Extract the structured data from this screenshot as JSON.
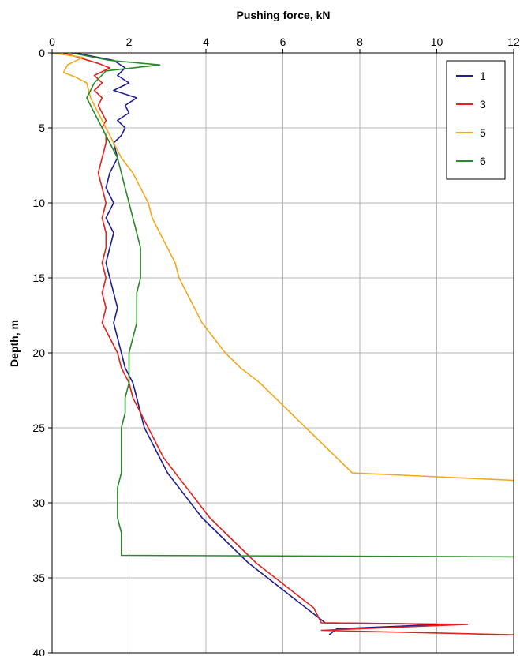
{
  "chart_data": {
    "type": "line",
    "title": "",
    "xlabel": "Pushing force, kN",
    "ylabel": "Depth, m",
    "xlim": [
      0,
      12
    ],
    "ylim": [
      0,
      40
    ],
    "y_inverted": true,
    "x_axis_position": "top",
    "grid": true,
    "legend_position": "top-right",
    "x_ticks": [
      "0",
      "2",
      "4",
      "6",
      "8",
      "10",
      "12"
    ],
    "y_ticks": [
      "0",
      "5",
      "10",
      "15",
      "20",
      "25",
      "30",
      "35",
      "40"
    ],
    "series": [
      {
        "name": "1",
        "color": "#1f1f8f",
        "points": [
          [
            0.6,
            0.0
          ],
          [
            1.6,
            0.5
          ],
          [
            1.9,
            1.0
          ],
          [
            1.7,
            1.5
          ],
          [
            2.0,
            2.0
          ],
          [
            1.6,
            2.5
          ],
          [
            2.2,
            3.0
          ],
          [
            1.9,
            3.5
          ],
          [
            2.0,
            4.0
          ],
          [
            1.7,
            4.5
          ],
          [
            1.9,
            5.0
          ],
          [
            1.8,
            5.5
          ],
          [
            1.6,
            6.0
          ],
          [
            1.7,
            7.0
          ],
          [
            1.5,
            8.0
          ],
          [
            1.4,
            9.0
          ],
          [
            1.6,
            10.0
          ],
          [
            1.4,
            11.0
          ],
          [
            1.6,
            12.0
          ],
          [
            1.5,
            13.0
          ],
          [
            1.4,
            14.0
          ],
          [
            1.5,
            15.0
          ],
          [
            1.6,
            16.0
          ],
          [
            1.7,
            17.0
          ],
          [
            1.6,
            18.0
          ],
          [
            1.7,
            19.0
          ],
          [
            1.8,
            20.0
          ],
          [
            1.9,
            21.0
          ],
          [
            2.1,
            22.0
          ],
          [
            2.2,
            23.0
          ],
          [
            2.3,
            24.0
          ],
          [
            2.4,
            25.0
          ],
          [
            2.6,
            26.0
          ],
          [
            2.8,
            27.0
          ],
          [
            3.0,
            28.0
          ],
          [
            3.3,
            29.0
          ],
          [
            3.6,
            30.0
          ],
          [
            3.9,
            31.0
          ],
          [
            4.3,
            32.0
          ],
          [
            4.7,
            33.0
          ],
          [
            5.1,
            34.0
          ],
          [
            5.6,
            35.0
          ],
          [
            6.1,
            36.0
          ],
          [
            6.6,
            37.0
          ],
          [
            7.1,
            38.0
          ],
          [
            10.2,
            38.1
          ],
          [
            7.4,
            38.4
          ],
          [
            7.2,
            38.8
          ]
        ]
      },
      {
        "name": "3",
        "color": "#e0231e",
        "points": [
          [
            0.3,
            0.0
          ],
          [
            1.2,
            0.7
          ],
          [
            1.5,
            1.0
          ],
          [
            1.1,
            1.5
          ],
          [
            1.3,
            2.0
          ],
          [
            1.1,
            2.5
          ],
          [
            1.3,
            3.0
          ],
          [
            1.2,
            3.5
          ],
          [
            1.3,
            4.0
          ],
          [
            1.4,
            4.5
          ],
          [
            1.3,
            5.0
          ],
          [
            1.4,
            5.5
          ],
          [
            1.4,
            6.0
          ],
          [
            1.3,
            7.0
          ],
          [
            1.2,
            8.0
          ],
          [
            1.3,
            9.0
          ],
          [
            1.4,
            10.0
          ],
          [
            1.3,
            11.0
          ],
          [
            1.4,
            12.0
          ],
          [
            1.4,
            13.0
          ],
          [
            1.3,
            14.0
          ],
          [
            1.4,
            15.0
          ],
          [
            1.3,
            16.0
          ],
          [
            1.4,
            17.0
          ],
          [
            1.3,
            18.0
          ],
          [
            1.5,
            19.0
          ],
          [
            1.7,
            20.0
          ],
          [
            1.8,
            21.0
          ],
          [
            2.0,
            22.0
          ],
          [
            2.1,
            23.0
          ],
          [
            2.3,
            24.0
          ],
          [
            2.5,
            25.0
          ],
          [
            2.7,
            26.0
          ],
          [
            2.9,
            27.0
          ],
          [
            3.2,
            28.0
          ],
          [
            3.5,
            29.0
          ],
          [
            3.8,
            30.0
          ],
          [
            4.1,
            31.0
          ],
          [
            4.5,
            32.0
          ],
          [
            4.9,
            33.0
          ],
          [
            5.3,
            34.0
          ],
          [
            5.8,
            35.0
          ],
          [
            6.3,
            36.0
          ],
          [
            6.8,
            37.0
          ],
          [
            7.0,
            38.0
          ],
          [
            10.8,
            38.1
          ],
          [
            7.0,
            38.5
          ],
          [
            12.0,
            38.8
          ]
        ]
      },
      {
        "name": "5",
        "color": "#f3a81c",
        "points": [
          [
            0.0,
            0.0
          ],
          [
            0.8,
            0.3
          ],
          [
            0.4,
            0.8
          ],
          [
            0.3,
            1.3
          ],
          [
            0.6,
            1.6
          ],
          [
            0.9,
            2.0
          ],
          [
            1.0,
            3.0
          ],
          [
            1.2,
            4.0
          ],
          [
            1.4,
            5.0
          ],
          [
            1.6,
            6.0
          ],
          [
            1.8,
            7.0
          ],
          [
            2.1,
            8.0
          ],
          [
            2.3,
            9.0
          ],
          [
            2.5,
            10.0
          ],
          [
            2.6,
            11.0
          ],
          [
            2.8,
            12.0
          ],
          [
            3.0,
            13.0
          ],
          [
            3.2,
            14.0
          ],
          [
            3.3,
            15.0
          ],
          [
            3.5,
            16.0
          ],
          [
            3.7,
            17.0
          ],
          [
            3.9,
            18.0
          ],
          [
            4.2,
            19.0
          ],
          [
            4.5,
            20.0
          ],
          [
            4.9,
            21.0
          ],
          [
            5.4,
            22.0
          ],
          [
            5.8,
            23.0
          ],
          [
            6.2,
            24.0
          ],
          [
            6.6,
            25.0
          ],
          [
            7.0,
            26.0
          ],
          [
            7.4,
            27.0
          ],
          [
            7.8,
            28.0
          ],
          [
            12.0,
            28.5
          ]
        ]
      },
      {
        "name": "6",
        "color": "#2a8a2a",
        "points": [
          [
            0.5,
            0.0
          ],
          [
            1.5,
            0.5
          ],
          [
            2.8,
            0.8
          ],
          [
            1.4,
            1.2
          ],
          [
            1.1,
            2.0
          ],
          [
            0.9,
            3.0
          ],
          [
            1.1,
            4.0
          ],
          [
            1.3,
            5.0
          ],
          [
            1.5,
            6.0
          ],
          [
            1.7,
            7.0
          ],
          [
            1.8,
            8.0
          ],
          [
            1.9,
            9.0
          ],
          [
            2.0,
            10.0
          ],
          [
            2.1,
            11.0
          ],
          [
            2.2,
            12.0
          ],
          [
            2.3,
            13.0
          ],
          [
            2.3,
            14.0
          ],
          [
            2.3,
            15.0
          ],
          [
            2.2,
            16.0
          ],
          [
            2.2,
            17.0
          ],
          [
            2.2,
            18.0
          ],
          [
            2.1,
            19.0
          ],
          [
            2.0,
            20.0
          ],
          [
            2.0,
            21.0
          ],
          [
            2.0,
            22.0
          ],
          [
            1.9,
            23.0
          ],
          [
            1.9,
            24.0
          ],
          [
            1.8,
            25.0
          ],
          [
            1.8,
            26.0
          ],
          [
            1.8,
            27.0
          ],
          [
            1.8,
            28.0
          ],
          [
            1.7,
            29.0
          ],
          [
            1.7,
            30.0
          ],
          [
            1.7,
            31.0
          ],
          [
            1.8,
            32.0
          ],
          [
            1.8,
            33.0
          ],
          [
            1.8,
            33.5
          ],
          [
            12.0,
            33.6
          ]
        ]
      }
    ]
  }
}
